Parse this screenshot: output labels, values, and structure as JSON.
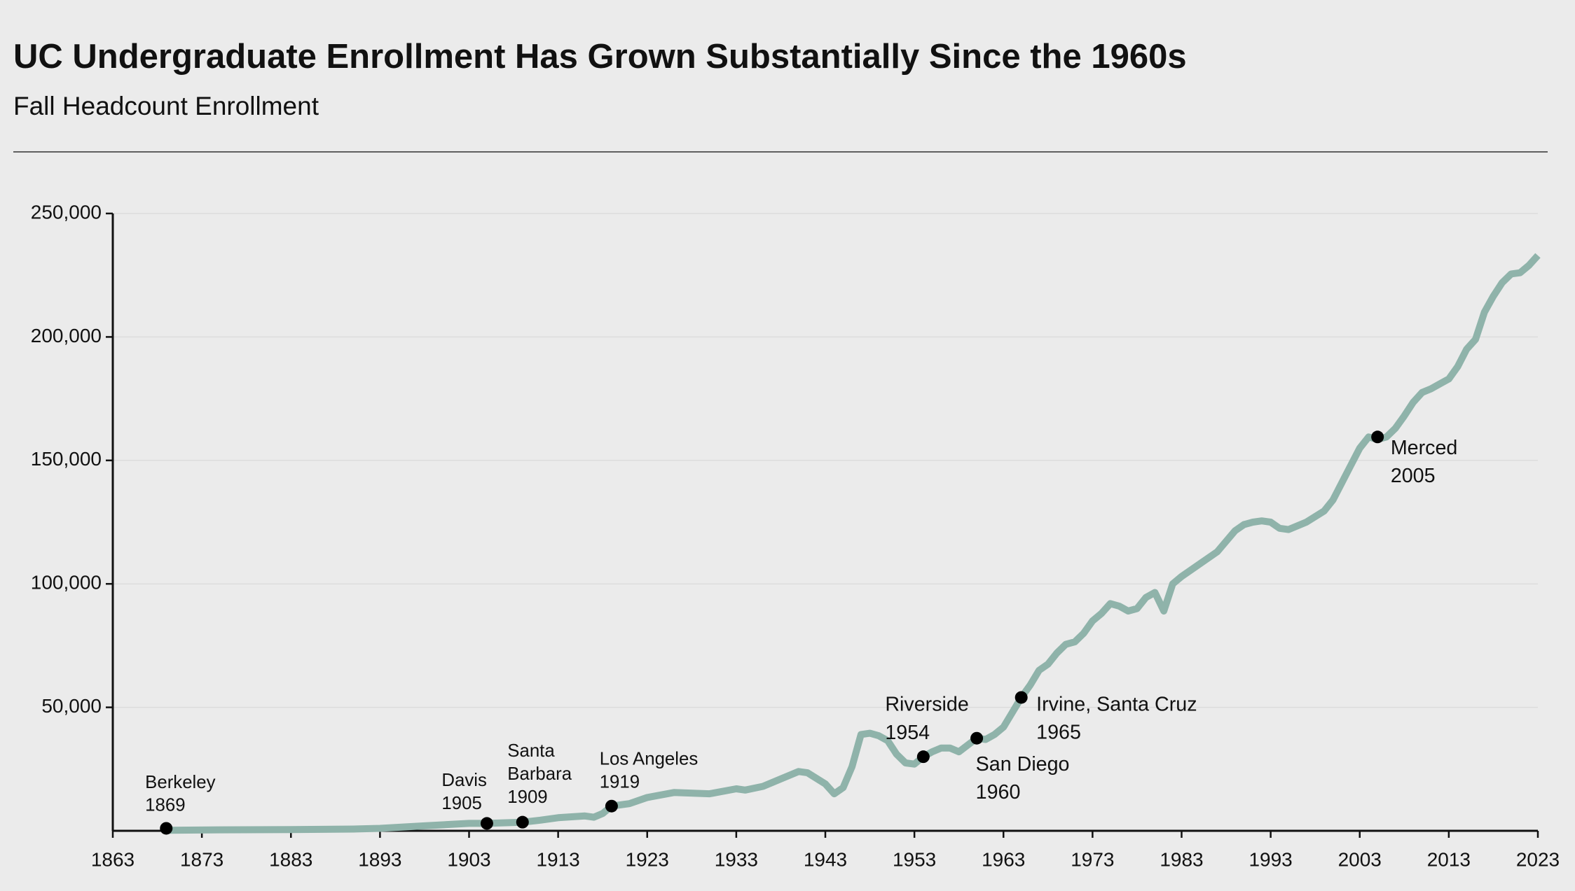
{
  "chart_data": {
    "type": "line",
    "title": "UC Undergraduate Enrollment Has Grown Substantially Since the 1960s",
    "subtitle": "Fall Headcount Enrollment",
    "color": "#8fb3aa",
    "xlim": [
      1863,
      2023
    ],
    "xticks": [
      1863,
      1873,
      1883,
      1893,
      1903,
      1913,
      1923,
      1933,
      1943,
      1953,
      1963,
      1973,
      1983,
      1993,
      2003,
      2013,
      2023
    ],
    "ylim": [
      0,
      250000
    ],
    "yticks": [
      {
        "value": 50000,
        "label": "50,000"
      },
      {
        "value": 100000,
        "label": "100,000"
      },
      {
        "value": 150000,
        "label": "150,000"
      },
      {
        "value": 200000,
        "label": "200,000"
      },
      {
        "value": 250000,
        "label": "250,000"
      }
    ],
    "grid": true,
    "x": [
      1869,
      1875,
      1883,
      1890,
      1893,
      1898,
      1903,
      1905,
      1909,
      1911,
      1913,
      1916,
      1917,
      1918,
      1919,
      1921,
      1923,
      1926,
      1930,
      1933,
      1934,
      1936,
      1938,
      1940,
      1941,
      1943,
      1944,
      1945,
      1946,
      1947,
      1948,
      1949,
      1950,
      1951,
      1952,
      1953,
      1954,
      1955,
      1956,
      1957,
      1958,
      1960,
      1961,
      1962,
      1963,
      1964,
      1965,
      1966,
      1967,
      1968,
      1969,
      1970,
      1971,
      1972,
      1973,
      1974,
      1975,
      1976,
      1977,
      1978,
      1979,
      1980,
      1981,
      1982,
      1983,
      1985,
      1987,
      1989,
      1990,
      1991,
      1992,
      1993,
      1994,
      1995,
      1997,
      1999,
      2000,
      2001,
      2002,
      2003,
      2004,
      2005,
      2006,
      2007,
      2008,
      2009,
      2010,
      2011,
      2012,
      2013,
      2014,
      2015,
      2016,
      2017,
      2018,
      2019,
      2020,
      2021,
      2022,
      2023
    ],
    "values": [
      200,
      400,
      500,
      700,
      1000,
      2000,
      3000,
      3000,
      3500,
      4300,
      5300,
      6000,
      5500,
      7000,
      10000,
      11000,
      13500,
      15500,
      15000,
      17000,
      16500,
      18000,
      21000,
      24000,
      23500,
      19000,
      15000,
      17500,
      26000,
      39000,
      39500,
      38500,
      36500,
      31000,
      27500,
      27000,
      30000,
      32000,
      33500,
      33500,
      32000,
      37500,
      37000,
      39000,
      42000,
      48000,
      54000,
      59000,
      65000,
      67500,
      72000,
      75500,
      76500,
      80000,
      85000,
      88000,
      92000,
      91000,
      89000,
      90000,
      94500,
      96500,
      89000,
      100000,
      103000,
      108000,
      113000,
      121500,
      124000,
      125000,
      125500,
      125000,
      122500,
      122000,
      125000,
      129500,
      134000,
      141000,
      148000,
      155000,
      159500,
      158500,
      159500,
      163000,
      168000,
      173500,
      177500,
      179000,
      181000,
      183000,
      188000,
      195000,
      199000,
      210000,
      216500,
      222000,
      225500,
      226000,
      229000,
      233000
    ],
    "annotations": [
      {
        "label": [
          "Berkeley"
        ],
        "x": 1869,
        "y": 1000
      },
      {
        "label": [
          "Davis"
        ],
        "x": 1905,
        "y": 3000
      },
      {
        "label": [
          "Santa",
          "Barbara"
        ],
        "x": 1909,
        "y": 3500
      },
      {
        "label": [
          "Los Angeles"
        ],
        "x": 1919,
        "y": 10000
      },
      {
        "label": [
          "Riverside"
        ],
        "x": 1954,
        "y": 30000
      },
      {
        "label": [
          "San Diego"
        ],
        "x": 1960,
        "y": 37500
      },
      {
        "label": [
          "Irvine, Santa Cruz"
        ],
        "x": 1965,
        "y": 54000
      },
      {
        "label": [
          "Merced"
        ],
        "x": 2005,
        "y": 159500
      }
    ]
  }
}
